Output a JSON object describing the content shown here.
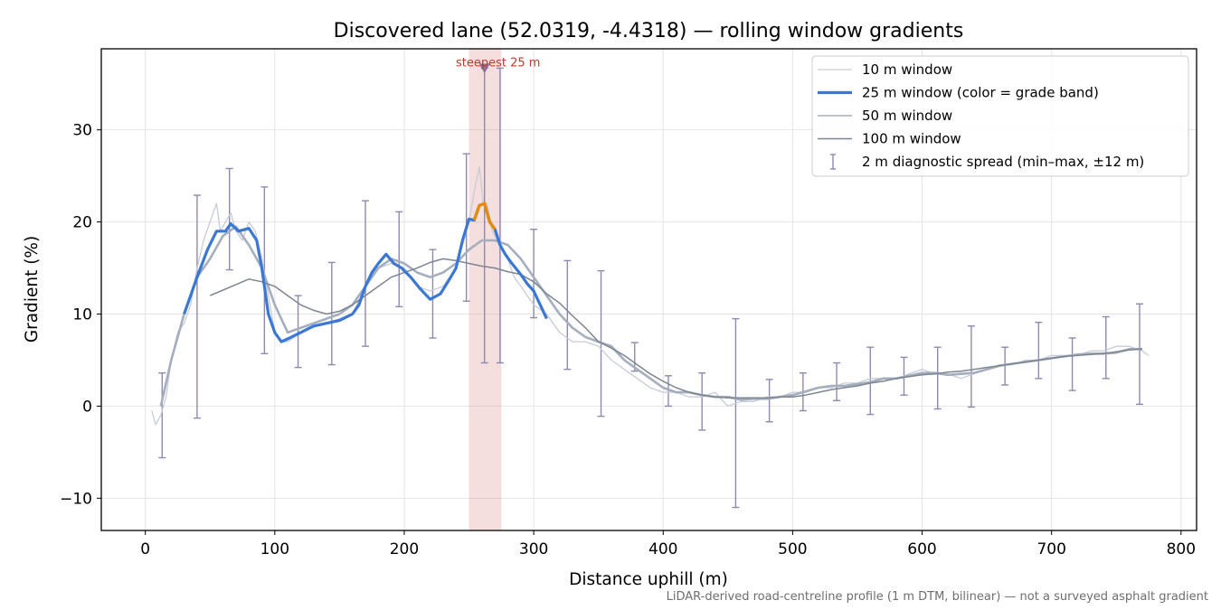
{
  "chart_data": {
    "type": "line",
    "title": "Discovered lane (52.0319, -4.4318) — rolling window gradients",
    "xlabel": "Distance uphill (m)",
    "ylabel": "Gradient (%)",
    "xlim": [
      -34,
      812
    ],
    "ylim": [
      -13.5,
      38.8
    ],
    "xticks": [
      0,
      100,
      200,
      300,
      400,
      500,
      600,
      700,
      800
    ],
    "yticks": [
      -10,
      0,
      10,
      20,
      30
    ],
    "grid": true,
    "legend_position": "upper right",
    "caption": "LiDAR-derived road-centreline profile (1 m DTM, bilinear) — not a surveyed asphalt gradient",
    "highlight": {
      "label": "steepest 25 m",
      "x_range": [
        250,
        275
      ],
      "marker_x": 262,
      "marker_y": 36.7,
      "color": "#c0392b"
    },
    "series": [
      {
        "name": "10 m window",
        "color": "#c6ccd6",
        "x": [
          5,
          8,
          12,
          16,
          20,
          25,
          30,
          35,
          40,
          45,
          50,
          55,
          58,
          62,
          66,
          70,
          75,
          80,
          85,
          90,
          95,
          100,
          105,
          110,
          115,
          120,
          125,
          130,
          140,
          150,
          160,
          170,
          180,
          190,
          200,
          210,
          220,
          230,
          240,
          250,
          255,
          258,
          261,
          264,
          268,
          272,
          276,
          280,
          285,
          290,
          300,
          310,
          320,
          330,
          340,
          350,
          360,
          370,
          380,
          390,
          400,
          410,
          420,
          430,
          440,
          450,
          460,
          470,
          480,
          490,
          500,
          510,
          520,
          530,
          540,
          550,
          560,
          570,
          580,
          590,
          600,
          610,
          620,
          630,
          640,
          650,
          660,
          670,
          680,
          690,
          700,
          710,
          720,
          730,
          740,
          750,
          760,
          770,
          775
        ],
        "values": [
          -0.5,
          -2,
          -1,
          1,
          5,
          8,
          9,
          11,
          15,
          18,
          20,
          22,
          19,
          20,
          21,
          19,
          18,
          20,
          19,
          16,
          12,
          8,
          7,
          7,
          7.5,
          8,
          8.5,
          8.8,
          9,
          9.5,
          10,
          13,
          15,
          15.5,
          15,
          13,
          12.5,
          13,
          15,
          20,
          24,
          26,
          22,
          22,
          19,
          18,
          17,
          16,
          14,
          13,
          11,
          10,
          8,
          7,
          7,
          6.5,
          5,
          4,
          3,
          2,
          1.5,
          1.5,
          1,
          1,
          1.5,
          0,
          0.5,
          0.5,
          1,
          1,
          1.5,
          1.5,
          2,
          2,
          2.5,
          2.5,
          3,
          3,
          3,
          3.5,
          4,
          3.5,
          3.5,
          3,
          3.5,
          4,
          4.5,
          4.5,
          5,
          5,
          5.5,
          5.5,
          5.5,
          6,
          6,
          6.5,
          6.5,
          6,
          5.5
        ]
      },
      {
        "name": "25 m window (color = grade band)",
        "color": "#3a78d4",
        "highlight_color": "#e68a00",
        "x": [
          30,
          40,
          48,
          55,
          62,
          66,
          72,
          80,
          86,
          90,
          95,
          100,
          105,
          110,
          120,
          130,
          140,
          150,
          160,
          165,
          170,
          175,
          180,
          186,
          192,
          198,
          205,
          212,
          220,
          228,
          235,
          240,
          245,
          250,
          254,
          258,
          262,
          266,
          270,
          274,
          278,
          282,
          286,
          290,
          295,
          300,
          305,
          310
        ],
        "values": [
          10,
          14,
          17,
          19,
          19,
          19.8,
          19,
          19.3,
          18,
          15,
          10,
          8,
          7,
          7.3,
          8,
          8.7,
          9,
          9.3,
          10,
          11,
          13,
          14.5,
          15.5,
          16.5,
          15.5,
          15,
          14,
          12.8,
          11.6,
          12.2,
          13.8,
          15,
          18,
          20.3,
          20.2,
          21.8,
          22,
          20,
          19.2,
          17.5,
          16.5,
          15.7,
          15,
          14.3,
          13.3,
          12.5,
          11,
          9.5
        ],
        "highlight_range": [
          254,
          272
        ]
      },
      {
        "name": "50 m window",
        "color": "#a4aebd",
        "x": [
          12,
          20,
          30,
          40,
          50,
          60,
          70,
          80,
          90,
          100,
          110,
          120,
          130,
          140,
          150,
          160,
          170,
          180,
          190,
          200,
          210,
          220,
          230,
          240,
          250,
          260,
          270,
          280,
          290,
          300,
          310,
          320,
          330,
          340,
          350,
          360,
          370,
          380,
          390,
          400,
          410,
          420,
          430,
          440,
          450,
          460,
          470,
          480,
          490,
          500,
          510,
          520,
          530,
          540,
          550,
          560,
          570,
          580,
          590,
          600,
          610,
          620,
          630,
          640,
          650,
          660,
          670,
          680,
          690,
          700,
          710,
          720,
          730,
          740,
          750,
          760,
          770
        ],
        "values": [
          0,
          5,
          10,
          14,
          16,
          18.5,
          19.5,
          17.5,
          15,
          11,
          8,
          8.5,
          9,
          9.5,
          10,
          11,
          13,
          15,
          16,
          15.5,
          14.5,
          14,
          14.5,
          15.5,
          17,
          18,
          18,
          17.5,
          16,
          14,
          12,
          10,
          8.5,
          7.5,
          7,
          6.5,
          5,
          4,
          3,
          2,
          1.5,
          1.5,
          1.2,
          1,
          1,
          0.7,
          0.8,
          0.8,
          1,
          1.2,
          1.6,
          2,
          2.2,
          2.2,
          2.4,
          2.6,
          3,
          3,
          3.3,
          3.6,
          3.6,
          3.4,
          3.5,
          3.6,
          4,
          4.4,
          4.6,
          4.8,
          5,
          5.2,
          5.4,
          5.6,
          5.7,
          5.7,
          5.8,
          6.2,
          6.2
        ]
      },
      {
        "name": "100 m window",
        "color": "#7d8592",
        "x": [
          50,
          60,
          70,
          80,
          90,
          100,
          110,
          120,
          130,
          140,
          150,
          160,
          170,
          180,
          190,
          200,
          210,
          220,
          230,
          240,
          250,
          260,
          270,
          280,
          290,
          300,
          310,
          320,
          330,
          340,
          350,
          360,
          370,
          380,
          390,
          400,
          410,
          420,
          430,
          440,
          450,
          460,
          470,
          480,
          490,
          500,
          510,
          520,
          530,
          540,
          550,
          560,
          570,
          580,
          590,
          600,
          610,
          620,
          630,
          640,
          650,
          660,
          670,
          680,
          690,
          700,
          710,
          720,
          730,
          740,
          750,
          760,
          770
        ],
        "values": [
          12,
          12.6,
          13.2,
          13.8,
          13.5,
          13,
          12,
          11,
          10.4,
          10,
          10.3,
          11,
          12,
          13,
          14,
          14.5,
          15,
          15.6,
          16,
          15.8,
          15.5,
          15.2,
          15,
          14.6,
          14.3,
          13.5,
          12.2,
          11.2,
          9.8,
          8.5,
          7,
          6.3,
          5.5,
          4.5,
          3.5,
          2.7,
          2,
          1.5,
          1.2,
          1,
          0.9,
          0.9,
          0.9,
          0.9,
          1,
          1,
          1.2,
          1.5,
          1.8,
          2,
          2.2,
          2.5,
          2.7,
          3,
          3.2,
          3.4,
          3.5,
          3.7,
          3.8,
          4,
          4.2,
          4.4,
          4.6,
          4.8,
          5,
          5.2,
          5.4,
          5.5,
          5.6,
          5.7,
          5.9,
          6.1,
          6.2
        ]
      },
      {
        "name": "2 m diagnostic spread (min–max, ±12 m)",
        "type": "errorbar",
        "color": "#8f89b0",
        "points": [
          {
            "x": 13,
            "min": -5.6,
            "max": 3.6
          },
          {
            "x": 40,
            "min": -1.3,
            "max": 22.9
          },
          {
            "x": 65,
            "min": 14.8,
            "max": 25.8
          },
          {
            "x": 92,
            "min": 5.7,
            "max": 23.8
          },
          {
            "x": 118,
            "min": 4.2,
            "max": 12
          },
          {
            "x": 144,
            "min": 4.5,
            "max": 15.6
          },
          {
            "x": 170,
            "min": 6.5,
            "max": 22.3
          },
          {
            "x": 196,
            "min": 10.8,
            "max": 21.1
          },
          {
            "x": 222,
            "min": 7.4,
            "max": 17
          },
          {
            "x": 248,
            "min": 11.4,
            "max": 27.4
          },
          {
            "x": 262,
            "min": 4.7,
            "max": 36.7
          },
          {
            "x": 274,
            "min": 4.7,
            "max": 36.7
          },
          {
            "x": 300,
            "min": 9.6,
            "max": 19.2
          },
          {
            "x": 326,
            "min": 4,
            "max": 15.8
          },
          {
            "x": 352,
            "min": -1.1,
            "max": 14.7
          },
          {
            "x": 378,
            "min": 3.8,
            "max": 6.9
          },
          {
            "x": 404,
            "min": 0,
            "max": 3.3
          },
          {
            "x": 430,
            "min": -2.6,
            "max": 3.6
          },
          {
            "x": 456,
            "min": -11,
            "max": 9.5
          },
          {
            "x": 482,
            "min": -1.7,
            "max": 2.9
          },
          {
            "x": 508,
            "min": -0.5,
            "max": 3.6
          },
          {
            "x": 534,
            "min": 0.6,
            "max": 4.7
          },
          {
            "x": 560,
            "min": -0.9,
            "max": 6.4
          },
          {
            "x": 586,
            "min": 1.2,
            "max": 5.3
          },
          {
            "x": 612,
            "min": -0.3,
            "max": 6.4
          },
          {
            "x": 638,
            "min": -0.1,
            "max": 8.7
          },
          {
            "x": 664,
            "min": 2.3,
            "max": 6.4
          },
          {
            "x": 690,
            "min": 3,
            "max": 9.1
          },
          {
            "x": 716,
            "min": 1.7,
            "max": 7.4
          },
          {
            "x": 742,
            "min": 3,
            "max": 9.7
          },
          {
            "x": 768,
            "min": 0.2,
            "max": 11.1
          }
        ]
      }
    ]
  }
}
